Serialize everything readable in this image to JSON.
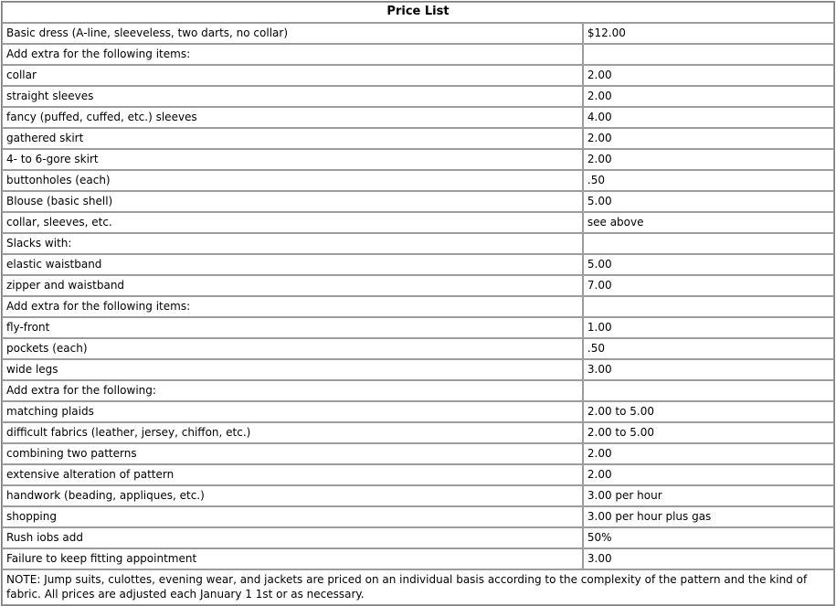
{
  "title": "Price List",
  "table": {
    "rows": [
      {
        "item": "Basic dress (A-line, sleeveless, two darts, no collar)",
        "price": "$12.00"
      },
      {
        "item": "Add extra for the following items:",
        "price": ""
      },
      {
        "item": "collar",
        "price": "2.00"
      },
      {
        "item": "straight sleeves",
        "price": "2.00"
      },
      {
        "item": "fancy (puffed, cuffed, etc.) sleeves",
        "price": "4.00"
      },
      {
        "item": "gathered skirt",
        "price": "2.00"
      },
      {
        "item": "4- to 6-gore skirt",
        "price": "2.00"
      },
      {
        "item": "buttonholes (each)",
        "price": ".50"
      },
      {
        "item": "Blouse (basic shell)",
        "price": "5.00"
      },
      {
        "item": "collar, sleeves, etc.",
        "price": "see above"
      },
      {
        "item": "Slacks with:",
        "price": ""
      },
      {
        "item": "elastic waistband",
        "price": "5.00"
      },
      {
        "item": "zipper and waistband",
        "price": "7.00"
      },
      {
        "item": "Add extra for the following items:",
        "price": ""
      },
      {
        "item": "fly-front",
        "price": "1.00"
      },
      {
        "item": "pockets (each)",
        "price": ".50"
      },
      {
        "item": "wide legs",
        "price": "3.00"
      },
      {
        "item": "Add extra for the following:",
        "price": ""
      },
      {
        "item": "matching plaids",
        "price": "2.00 to 5.00"
      },
      {
        "item": "difficult fabrics (leather, jersey, chiffon, etc.)",
        "price": "2.00 to 5.00"
      },
      {
        "item": "combining two patterns",
        "price": "2.00"
      },
      {
        "item": "extensive alteration of pattern",
        "price": "2.00"
      },
      {
        "item": "handwork (beading, appliques, etc.)",
        "price": "3.00 per hour"
      },
      {
        "item": "shopping",
        "price": "3.00 per hour plus gas"
      },
      {
        "item": "Rush iobs add",
        "price": "50%"
      },
      {
        "item": "Failure to keep fitting appointment",
        "price": "3.00"
      }
    ]
  },
  "note": "NOTE: Jump suits, culottes, evening wear, and jackets are priced on an individual basis according to the complexity of the pattern and the kind of fabric. All prices are adjusted each January 1 1st or as necessary.",
  "colors": {
    "outer_border": "#808080",
    "cell_border": "#9c9c9c",
    "background": "#ffffff",
    "text": "#000000"
  }
}
